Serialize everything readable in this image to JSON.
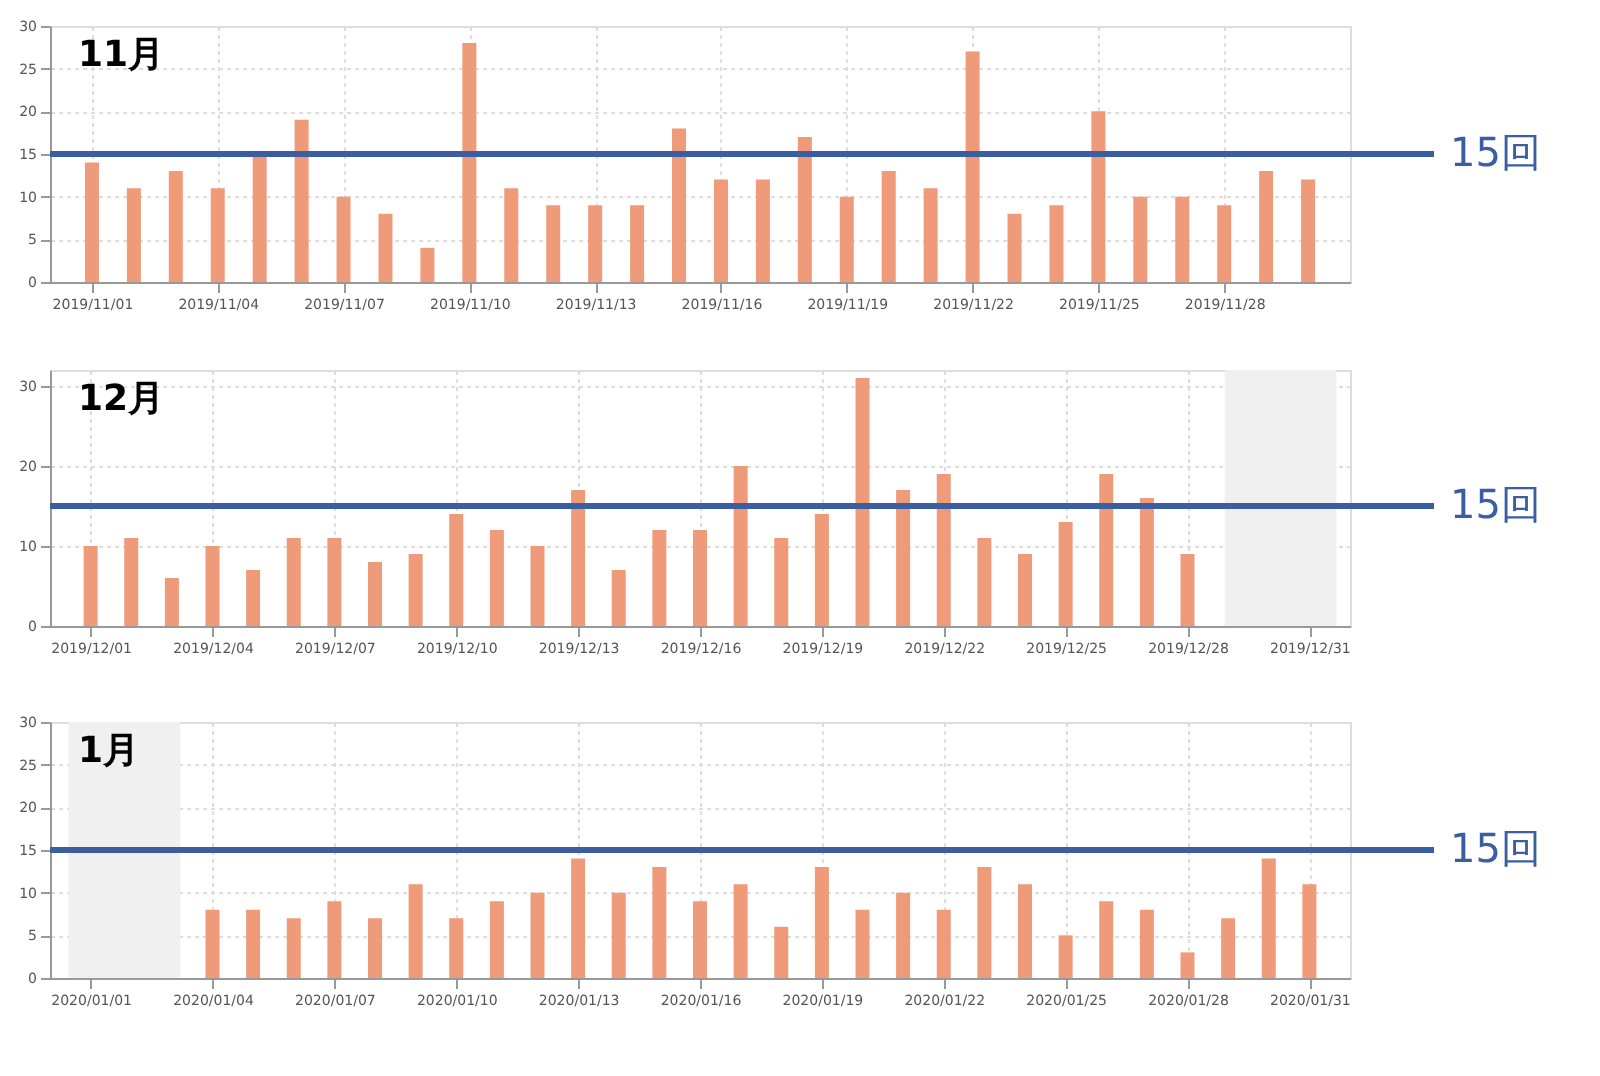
{
  "chart_data": [
    {
      "type": "bar",
      "title": "11月",
      "color": "#ef9a78",
      "grid": true,
      "x": [
        "2019-11-01",
        "2019-11-02",
        "2019-11-03",
        "2019-11-04",
        "2019-11-05",
        "2019-11-06",
        "2019-11-07",
        "2019-11-08",
        "2019-11-09",
        "2019-11-10",
        "2019-11-11",
        "2019-11-12",
        "2019-11-13",
        "2019-11-14",
        "2019-11-15",
        "2019-11-16",
        "2019-11-17",
        "2019-11-18",
        "2019-11-19",
        "2019-11-20",
        "2019-11-21",
        "2019-11-22",
        "2019-11-23",
        "2019-11-24",
        "2019-11-25",
        "2019-11-26",
        "2019-11-27",
        "2019-11-28",
        "2019-11-29",
        "2019-11-30"
      ],
      "values": [
        14,
        11,
        13,
        11,
        15,
        19,
        10,
        8,
        4,
        28,
        11,
        9,
        9,
        9,
        18,
        12,
        12,
        17,
        10,
        13,
        11,
        27,
        8,
        9,
        20,
        10,
        10,
        9,
        13,
        12
      ],
      "xlim": [
        "2019-10-31",
        "2019-12-01"
      ],
      "xticks": [
        {
          "value": "2019-11-01",
          "label": "2019/11/01"
        },
        {
          "value": "2019-11-04",
          "label": "2019/11/04"
        },
        {
          "value": "2019-11-07",
          "label": "2019/11/07"
        },
        {
          "value": "2019-11-10",
          "label": "2019/11/10"
        },
        {
          "value": "2019-11-13",
          "label": "2019/11/13"
        },
        {
          "value": "2019-11-16",
          "label": "2019/11/16"
        },
        {
          "value": "2019-11-19",
          "label": "2019/11/19"
        },
        {
          "value": "2019-11-22",
          "label": "2019/11/22"
        },
        {
          "value": "2019-11-25",
          "label": "2019/11/25"
        },
        {
          "value": "2019-11-28",
          "label": "2019/11/28"
        }
      ],
      "ylim": [
        0,
        30
      ],
      "yticks": [
        0,
        5,
        10,
        15,
        20,
        25,
        30
      ],
      "ref_lines": [
        {
          "axis": "y",
          "value": 15,
          "label": "15回",
          "color": "#3b5ea0"
        }
      ]
    },
    {
      "type": "bar",
      "title": "12月",
      "color": "#ef9a78",
      "grid": true,
      "x": [
        "2019-12-01",
        "2019-12-02",
        "2019-12-03",
        "2019-12-04",
        "2019-12-05",
        "2019-12-06",
        "2019-12-07",
        "2019-12-08",
        "2019-12-09",
        "2019-12-10",
        "2019-12-11",
        "2019-12-12",
        "2019-12-13",
        "2019-12-14",
        "2019-12-15",
        "2019-12-16",
        "2019-12-17",
        "2019-12-18",
        "2019-12-19",
        "2019-12-20",
        "2019-12-21",
        "2019-12-22",
        "2019-12-23",
        "2019-12-24",
        "2019-12-25",
        "2019-12-26",
        "2019-12-27",
        "2019-12-28",
        "2019-12-29",
        "2019-12-30",
        "2019-12-31"
      ],
      "values": [
        10,
        11,
        6,
        10,
        7,
        11,
        11,
        8,
        9,
        14,
        12,
        10,
        17,
        7,
        12,
        12,
        20,
        11,
        14,
        31,
        17,
        19,
        11,
        9,
        13,
        19,
        16,
        9,
        0,
        0,
        0
      ],
      "xlim": [
        "2019-11-30",
        "2020-01-01"
      ],
      "xticks": [
        {
          "value": "2019-12-01",
          "label": "2019/12/01"
        },
        {
          "value": "2019-12-04",
          "label": "2019/12/04"
        },
        {
          "value": "2019-12-07",
          "label": "2019/12/07"
        },
        {
          "value": "2019-12-10",
          "label": "2019/12/10"
        },
        {
          "value": "2019-12-13",
          "label": "2019/12/13"
        },
        {
          "value": "2019-12-16",
          "label": "2019/12/16"
        },
        {
          "value": "2019-12-19",
          "label": "2019/12/19"
        },
        {
          "value": "2019-12-22",
          "label": "2019/12/22"
        },
        {
          "value": "2019-12-25",
          "label": "2019/12/25"
        },
        {
          "value": "2019-12-28",
          "label": "2019/12/28"
        },
        {
          "value": "2019-12-31",
          "label": "2019/12/31"
        }
      ],
      "ylim": [
        0,
        32
      ],
      "yticks": [
        0,
        10,
        20,
        30
      ],
      "ref_lines": [
        {
          "axis": "y",
          "value": 15,
          "label": "15回",
          "color": "#3b5ea0"
        }
      ],
      "bands": [
        {
          "axis": "x",
          "from": "2019-12-28T22:00",
          "to": "2019-12-31T16:00",
          "color": "#f0f0f0"
        }
      ]
    },
    {
      "type": "bar",
      "title": "1月",
      "color": "#ef9a78",
      "grid": true,
      "x": [
        "2020-01-01",
        "2020-01-02",
        "2020-01-03",
        "2020-01-04",
        "2020-01-05",
        "2020-01-06",
        "2020-01-07",
        "2020-01-08",
        "2020-01-09",
        "2020-01-10",
        "2020-01-11",
        "2020-01-12",
        "2020-01-13",
        "2020-01-14",
        "2020-01-15",
        "2020-01-16",
        "2020-01-17",
        "2020-01-18",
        "2020-01-19",
        "2020-01-20",
        "2020-01-21",
        "2020-01-22",
        "2020-01-23",
        "2020-01-24",
        "2020-01-25",
        "2020-01-26",
        "2020-01-27",
        "2020-01-28",
        "2020-01-29",
        "2020-01-30",
        "2020-01-31"
      ],
      "values": [
        0,
        0,
        0,
        8,
        8,
        7,
        9,
        7,
        11,
        7,
        9,
        10,
        14,
        10,
        13,
        9,
        11,
        6,
        13,
        8,
        10,
        8,
        13,
        11,
        5,
        9,
        8,
        3,
        7,
        14,
        11
      ],
      "xlim": [
        "2019-12-31",
        "2020-02-01"
      ],
      "xticks": [
        {
          "value": "2020-01-01",
          "label": "2020/01/01"
        },
        {
          "value": "2020-01-04",
          "label": "2020/01/04"
        },
        {
          "value": "2020-01-07",
          "label": "2020/01/07"
        },
        {
          "value": "2020-01-10",
          "label": "2020/01/10"
        },
        {
          "value": "2020-01-13",
          "label": "2020/01/13"
        },
        {
          "value": "2020-01-16",
          "label": "2020/01/16"
        },
        {
          "value": "2020-01-19",
          "label": "2020/01/19"
        },
        {
          "value": "2020-01-22",
          "label": "2020/01/22"
        },
        {
          "value": "2020-01-25",
          "label": "2020/01/25"
        },
        {
          "value": "2020-01-28",
          "label": "2020/01/28"
        },
        {
          "value": "2020-01-31",
          "label": "2020/01/31"
        }
      ],
      "ylim": [
        0,
        30
      ],
      "yticks": [
        0,
        5,
        10,
        15,
        20,
        25,
        30
      ],
      "ref_lines": [
        {
          "axis": "y",
          "value": 15,
          "label": "15回",
          "color": "#3b5ea0"
        }
      ],
      "bands": [
        {
          "axis": "x",
          "from": "2019-12-31T11:00",
          "to": "2020-01-03T05:00",
          "color": "#f0f0f0"
        }
      ]
    }
  ]
}
